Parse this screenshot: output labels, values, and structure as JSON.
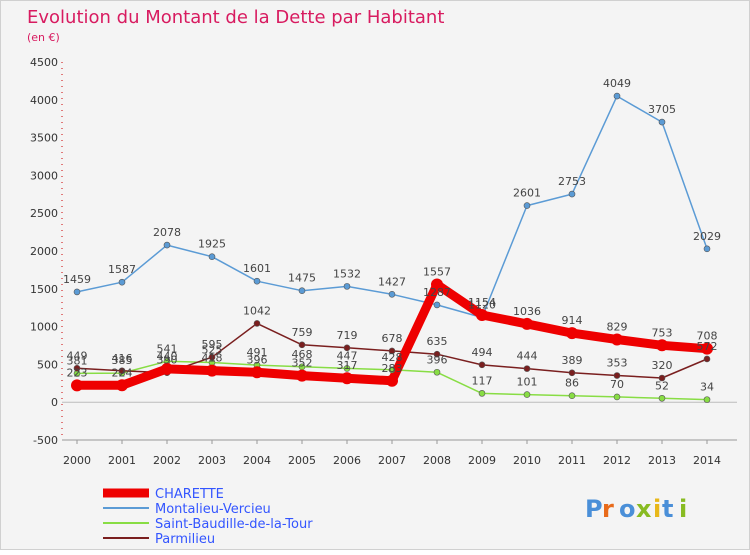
{
  "chart_data": {
    "type": "line",
    "title": "Evolution du Montant de la Dette par Habitant",
    "subtitle": "(en €)",
    "x": [
      "2000",
      "2001",
      "2002",
      "2003",
      "2004",
      "2005",
      "2006",
      "2007",
      "2008",
      "2009",
      "2010",
      "2011",
      "2012",
      "2013",
      "2014"
    ],
    "ylim": [
      -500,
      4500
    ],
    "yticks": [
      -500,
      0,
      500,
      1000,
      1500,
      2000,
      2500,
      3000,
      3500,
      4000,
      4500
    ],
    "grid": false,
    "legend_position": "bottom-left",
    "series": [
      {
        "name": "CHARETTE",
        "color": "#ee0000",
        "values": [
          223,
          224,
          440,
          418,
          396,
          352,
          317,
          283,
          1557,
          1154,
          1036,
          914,
          829,
          753,
          708
        ],
        "labels": [
          "223",
          "224",
          "440",
          "418",
          "396",
          "352",
          "317",
          "283",
          "1557",
          "1154",
          "1036",
          "914",
          "829",
          "753",
          "708"
        ]
      },
      {
        "name": "Montalieu-Vercieu",
        "color": "#5b9bd5",
        "values": [
          1459,
          1587,
          2078,
          1925,
          1601,
          1475,
          1532,
          1427,
          1287,
          1120,
          2601,
          2753,
          4049,
          3705,
          2029
        ],
        "labels": [
          "1459",
          "1587",
          "2078",
          "1925",
          "1601",
          "1475",
          "1532",
          "1427",
          "1287",
          "1120",
          "2601",
          "2753",
          "4049",
          "3705",
          "2029"
        ]
      },
      {
        "name": "Saint-Baudille-de-la-Tour",
        "color": "#88dd44",
        "values": [
          381,
          385,
          541,
          525,
          491,
          468,
          447,
          428,
          396,
          117,
          101,
          86,
          70,
          52,
          34
        ],
        "labels": [
          "381",
          "385",
          "541",
          "525",
          "491",
          "468",
          "447",
          "428",
          "396",
          "117",
          "101",
          "86",
          "70",
          "52",
          "34"
        ]
      },
      {
        "name": "Parmilieu",
        "color": "#7a1f1f",
        "values": [
          449,
          416,
          390,
          595,
          1042,
          759,
          719,
          678,
          635,
          494,
          444,
          389,
          353,
          320,
          572
        ],
        "labels": [
          "449",
          "416",
          "390",
          "595",
          "1042",
          "759",
          "719",
          "678",
          "635",
          "494",
          "444",
          "389",
          "353",
          "320",
          "572"
        ]
      }
    ],
    "watermark": "Proxiti"
  }
}
